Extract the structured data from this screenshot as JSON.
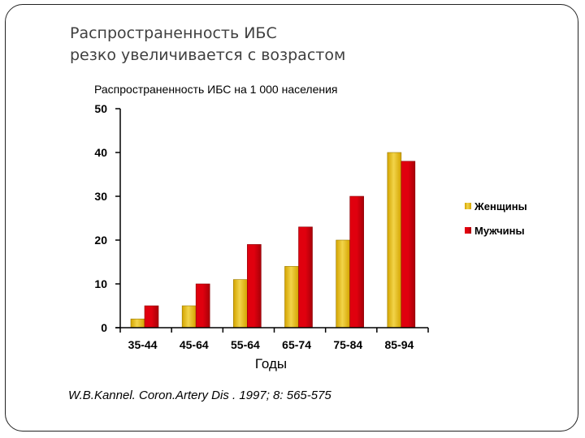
{
  "slide": {
    "title_lines": [
      "Распространенность ИБС",
      "резко увеличивается с возрастом"
    ],
    "citation": "W.B.Kannel. Coron.Artery Dis . 1997; 8: 565-575"
  },
  "colors": {
    "women": "#D4A400",
    "women_light": "#F2D44A",
    "men": "#E0000E",
    "men_dark": "#A80008",
    "axis": "#000000",
    "title": "#404040"
  },
  "chart_data": {
    "type": "bar",
    "title": "Распространенность ИБС на 1 000 населения",
    "xlabel": "Годы",
    "ylabel": "",
    "categories": [
      "35-44",
      "45-64",
      "55-64",
      "65-74",
      "75-84",
      "85-94"
    ],
    "series": [
      {
        "name": "Женщины",
        "values": [
          2,
          5,
          11,
          14,
          20,
          40
        ]
      },
      {
        "name": "Мужчины",
        "values": [
          5,
          10,
          19,
          23,
          30,
          38
        ]
      }
    ],
    "ylim": [
      0,
      50
    ],
    "yticks": [
      0,
      10,
      20,
      30,
      40,
      50
    ],
    "grid": false,
    "legend_position": "right"
  }
}
